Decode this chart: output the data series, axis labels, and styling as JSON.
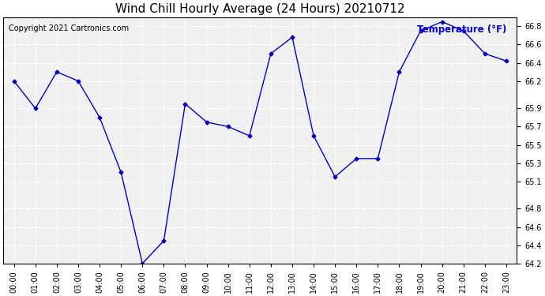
{
  "title": "Wind Chill Hourly Average (24 Hours) 20210712",
  "copyright_text": "Copyright 2021 Cartronics.com",
  "legend_label": "Temperature (°F)",
  "hours": [
    "00:00",
    "01:00",
    "02:00",
    "03:00",
    "04:00",
    "05:00",
    "06:00",
    "07:00",
    "08:00",
    "09:00",
    "10:00",
    "11:00",
    "12:00",
    "13:00",
    "14:00",
    "15:00",
    "16:00",
    "17:00",
    "18:00",
    "19:00",
    "20:00",
    "21:00",
    "22:00",
    "23:00"
  ],
  "values": [
    66.2,
    65.9,
    66.3,
    66.2,
    65.8,
    65.2,
    64.2,
    64.45,
    65.95,
    65.75,
    65.7,
    65.6,
    66.5,
    66.68,
    65.6,
    65.15,
    65.35,
    65.35,
    66.3,
    66.75,
    66.85,
    66.75,
    66.5,
    66.42
  ],
  "line_color": "#0000cc",
  "marker": "D",
  "marker_size": 2.5,
  "ylim_min": 64.2,
  "ylim_max": 66.9,
  "yticks": [
    64.2,
    64.4,
    64.6,
    64.8,
    65.1,
    65.3,
    65.5,
    65.7,
    65.9,
    66.2,
    66.4,
    66.6,
    66.8
  ],
  "plot_bg_color": "#f0f0f0",
  "fig_bg_color": "#ffffff",
  "grid_color": "#ffffff",
  "title_fontsize": 11,
  "copyright_fontsize": 7,
  "legend_fontsize": 8.5,
  "tick_fontsize": 7,
  "linewidth": 1.0
}
